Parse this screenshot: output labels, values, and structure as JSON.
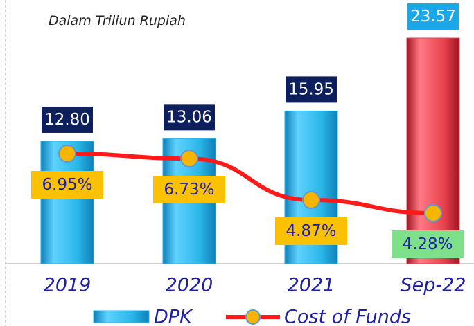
{
  "chart_data": {
    "type": "bar_line",
    "title": "Dalam Triliun Rupiah",
    "categories": [
      "2019",
      "2020",
      "2021",
      "Sep-22"
    ],
    "series": [
      {
        "name": "DPK",
        "type": "bar",
        "color": "#29b6e8",
        "colors": [
          "#29b6e8",
          "#29b6e8",
          "#29b6e8",
          "#e8424e"
        ],
        "values": [
          12.8,
          13.06,
          15.95,
          23.57
        ],
        "value_labels": [
          "12.80",
          "13.06",
          "15.95",
          "23.57"
        ],
        "label_colors": [
          "#0d1f5c",
          "#0d1f5c",
          "#0d1f5c",
          "#1aa7e8"
        ]
      },
      {
        "name": "Cost of Funds",
        "type": "line",
        "axis": "y2",
        "color": "#ff1a1a",
        "marker_color": "#f7b500",
        "values": [
          6.95,
          6.73,
          4.87,
          4.28
        ],
        "value_labels": [
          "6.95%",
          "6.73%",
          "4.87%",
          "4.28%"
        ],
        "label_colors": [
          "#f9c100",
          "#f9c100",
          "#f9c100",
          "#7ee08a"
        ]
      }
    ]
  }
}
